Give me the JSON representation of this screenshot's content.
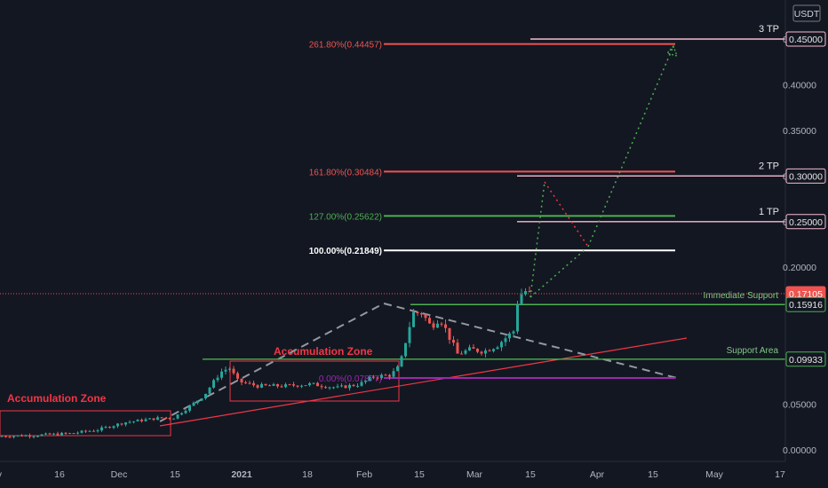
{
  "currency_badge": "USDT",
  "colors": {
    "background": "#131722",
    "up": "#26a69a",
    "down": "#ef5350",
    "axis_text": "#b2b5be",
    "fib_red": "#ef5350",
    "fib_green": "#4caf50",
    "fib_white": "#ffffff",
    "fib_purple": "#9c27b0",
    "tp_line": "#f8bbd0",
    "support_green": "#4caf50",
    "zone_red": "#f23645",
    "trend_dash": "#9598a1",
    "projection_green": "#4caf50",
    "projection_red": "#f23645"
  },
  "chart_data": {
    "type": "candlestick",
    "yticks": [
      "0.45000",
      "0.40000",
      "0.35000",
      "0.30000",
      "0.25000",
      "0.20000",
      "0.05000",
      "0.00000"
    ],
    "xticks": [
      "Nov",
      "16",
      "Dec",
      "15",
      "2021",
      "18",
      "Feb",
      "15",
      "Mar",
      "15",
      "Apr",
      "15",
      "May",
      "17"
    ],
    "price_badges": [
      {
        "label": "0.45000",
        "value": 0.45,
        "style": "tp"
      },
      {
        "label": "0.30000",
        "value": 0.3,
        "style": "tp"
      },
      {
        "label": "0.25000",
        "value": 0.25,
        "style": "tp"
      },
      {
        "label": "0.17105",
        "value": 0.17105,
        "style": "last"
      },
      {
        "label": "0.15916",
        "value": 0.15916,
        "style": "support"
      },
      {
        "label": "0.09933",
        "value": 0.09933,
        "style": "support"
      }
    ],
    "fib_levels": [
      {
        "label": "261.80%(0.44457)",
        "value": 0.44457,
        "color": "#ef5350"
      },
      {
        "label": "161.80%(0.30484)",
        "value": 0.30484,
        "color": "#ef5350"
      },
      {
        "label": "127.00%(0.25622)",
        "value": 0.25622,
        "color": "#4caf50"
      },
      {
        "label": "100.00%(0.21849)",
        "value": 0.21849,
        "color": "#ffffff"
      },
      {
        "label": "0.00%(0.07877)",
        "value": 0.07877,
        "color": "#9c27b0"
      }
    ],
    "take_profits": [
      {
        "label": "3 TP",
        "value": 0.45
      },
      {
        "label": "2 TP",
        "value": 0.3
      },
      {
        "label": "1 TP",
        "value": 0.25
      }
    ],
    "support_lines": [
      {
        "label": "Immediate Support",
        "value": 0.15916
      },
      {
        "label": "Support Area",
        "value": 0.09933
      }
    ],
    "zones": [
      {
        "label": "Accumulation Zone"
      },
      {
        "label": "Accumulation Zone"
      }
    ],
    "last_price": 0.17105
  }
}
